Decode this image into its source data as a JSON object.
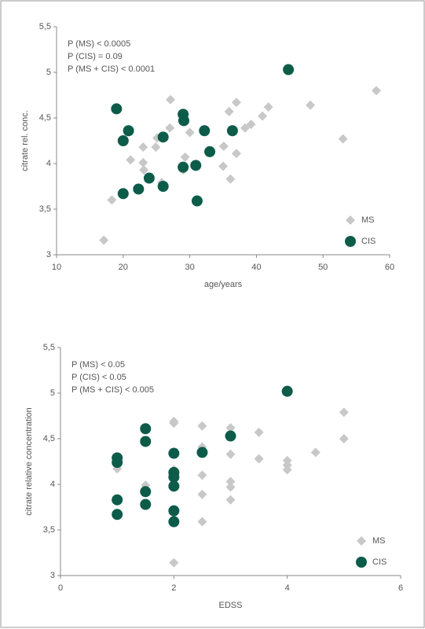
{
  "chart_data": [
    {
      "type": "scatter",
      "xlabel": "age/years",
      "ylabel": "citrate rel. conc.",
      "annotations": [
        "P (MS) < 0.0005",
        "P (CIS) = 0.09",
        "P (MS + CIS) < 0.0001"
      ],
      "xlim": [
        10,
        60
      ],
      "xticks": [
        10,
        20,
        30,
        40,
        50,
        60
      ],
      "ylim": [
        3,
        5.5
      ],
      "yticks": [
        3,
        {
          "value": 3.5,
          "label": "3,5"
        },
        4,
        {
          "value": 4.5,
          "label": "4,5"
        },
        5,
        {
          "value": 5.5,
          "label": "5,5"
        }
      ],
      "legend": "lower right",
      "series": [
        {
          "name": "MS",
          "color": "#c8c8c8",
          "marker": "diamond",
          "x": [
            17.1,
            18.3,
            21.1,
            23.0,
            23.0,
            23.1,
            24.9,
            25.1,
            25.8,
            27.0,
            27.1,
            29.3,
            29.0,
            30.0,
            35.0,
            35.1,
            35.9,
            36.1,
            37.0,
            37.0,
            38.3,
            39.2,
            40.9,
            41.8,
            48.1,
            53.0,
            58.0
          ],
          "values": [
            3.16,
            3.6,
            4.04,
            4.18,
            4.01,
            3.93,
            4.18,
            4.28,
            3.79,
            4.39,
            4.7,
            4.07,
            3.93,
            4.34,
            3.97,
            4.19,
            4.57,
            3.83,
            4.67,
            4.11,
            4.39,
            4.43,
            4.52,
            4.62,
            4.64,
            4.27,
            4.8
          ]
        },
        {
          "name": "CIS",
          "color": "#0d5c4a",
          "marker": "circle",
          "x": [
            19.0,
            20.8,
            20.0,
            26.0,
            29.0,
            29.1,
            32.2,
            36.4,
            33.0,
            30.9,
            29.0,
            23.9,
            22.3,
            20.0,
            26.0,
            31.1,
            44.8
          ],
          "values": [
            4.6,
            4.36,
            4.25,
            4.29,
            4.54,
            4.47,
            4.36,
            4.36,
            4.13,
            3.98,
            3.96,
            3.84,
            3.72,
            3.67,
            3.75,
            3.59,
            5.03
          ]
        }
      ]
    },
    {
      "type": "scatter",
      "xlabel": "EDSS",
      "ylabel": "citrate relative concentration",
      "annotations": [
        "P (MS) < 0.05",
        "P (CIS) < 0.05",
        "P (MS + CIS) < 0.005"
      ],
      "xlim": [
        0,
        6
      ],
      "xticks": [
        0,
        2,
        4,
        6
      ],
      "ylim": [
        3,
        5.5
      ],
      "yticks": [
        3,
        {
          "value": 3.5,
          "label": "3,5"
        },
        4,
        {
          "value": 4.5,
          "label": "4,5"
        },
        5,
        {
          "value": 5.5,
          "label": "5,5"
        }
      ],
      "legend": "lower right",
      "series": [
        {
          "name": "MS",
          "color": "#c8c8c8",
          "marker": "diamond",
          "x": [
            1,
            1,
            1.5,
            2,
            2,
            2,
            2,
            2,
            2,
            2.5,
            2.5,
            2.5,
            2.5,
            2.5,
            3,
            3,
            3,
            3,
            3,
            3.5,
            3.5,
            4,
            4,
            4,
            4.5,
            5,
            5
          ],
          "values": [
            4.17,
            4.24,
            3.99,
            4.69,
            4.67,
            4.16,
            4.11,
            4.06,
            3.14,
            4.64,
            4.41,
            4.1,
            3.89,
            3.59,
            4.62,
            4.33,
            4.03,
            3.97,
            3.83,
            4.57,
            4.28,
            4.26,
            4.21,
            4.16,
            4.35,
            4.79,
            4.5
          ]
        },
        {
          "name": "CIS",
          "color": "#0d5c4a",
          "marker": "circle",
          "x": [
            1,
            1,
            1,
            1,
            1.5,
            1.5,
            1.5,
            1.5,
            2,
            2,
            2,
            2,
            2,
            2,
            2.5,
            3,
            4
          ],
          "values": [
            4.29,
            4.24,
            3.83,
            3.67,
            4.61,
            4.47,
            3.92,
            3.78,
            4.34,
            4.13,
            4.08,
            3.98,
            3.71,
            3.59,
            4.35,
            4.53,
            5.02
          ]
        }
      ]
    }
  ]
}
